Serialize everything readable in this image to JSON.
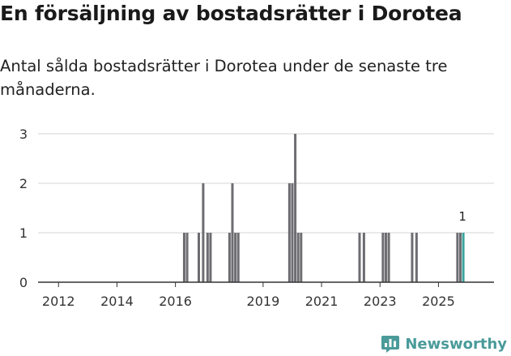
{
  "chart_data": {
    "type": "bar",
    "title": "En försäljning av bostadsrätter i Dorotea",
    "subtitle": "Antal sålda bostadsrätter i Dorotea under de senaste tre månaderna.",
    "xlabel": "",
    "ylabel": "",
    "xlim": [
      2011.3,
      2026.9
    ],
    "ylim": [
      0,
      3
    ],
    "yticks": [
      0,
      1,
      2,
      3
    ],
    "xticks": [
      2012,
      2014,
      2016,
      2019,
      2021,
      2023,
      2025
    ],
    "grid": true,
    "bar_width_years": 0.0833,
    "highlight_label": "1",
    "bars": [
      {
        "x": 2016.3,
        "value": 1
      },
      {
        "x": 2016.4,
        "value": 1
      },
      {
        "x": 2016.8,
        "value": 1
      },
      {
        "x": 2016.95,
        "value": 2
      },
      {
        "x": 2017.1,
        "value": 1
      },
      {
        "x": 2017.2,
        "value": 1
      },
      {
        "x": 2017.85,
        "value": 1
      },
      {
        "x": 2017.95,
        "value": 2
      },
      {
        "x": 2018.05,
        "value": 1
      },
      {
        "x": 2018.15,
        "value": 1
      },
      {
        "x": 2019.9,
        "value": 2
      },
      {
        "x": 2020.0,
        "value": 2
      },
      {
        "x": 2020.1,
        "value": 3
      },
      {
        "x": 2020.2,
        "value": 1
      },
      {
        "x": 2020.3,
        "value": 1
      },
      {
        "x": 2022.3,
        "value": 1
      },
      {
        "x": 2022.45,
        "value": 1
      },
      {
        "x": 2023.1,
        "value": 1
      },
      {
        "x": 2023.2,
        "value": 1
      },
      {
        "x": 2023.3,
        "value": 1
      },
      {
        "x": 2024.1,
        "value": 1
      },
      {
        "x": 2024.25,
        "value": 1
      },
      {
        "x": 2025.65,
        "value": 1
      },
      {
        "x": 2025.75,
        "value": 1
      },
      {
        "x": 2025.85,
        "value": 1,
        "highlight": true
      }
    ],
    "colors": {
      "bar": "#6d6d72",
      "highlight": "#3aa39c",
      "grid": "#d6d6d6",
      "axis": "#333333"
    }
  },
  "brand": {
    "name": "Newsworthy",
    "icon": "newsworthy-logo-icon",
    "color": "#4a9b9a"
  }
}
